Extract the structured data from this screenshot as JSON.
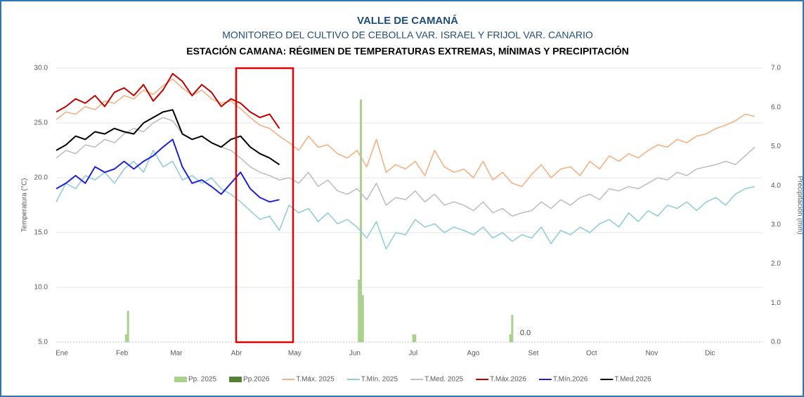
{
  "chart_data": {
    "type": "combo",
    "title": "VALLE DE CAMANÁ",
    "subtitle": "MONITOREO DEL CULTIVO DE CEBOLLA VAR. ISRAEL Y FRIJOL VAR. CANARIO",
    "subtitle2": "ESTACIÓN CAMANA: RÉGIMEN DE TEMPERATURAS EXTREMAS, MÍNIMAS Y PRECIPITACIÓN",
    "y_label": "Temperatura (°C)",
    "y2_label": "Precipitación (mm)",
    "annotation": "0.0",
    "grid": true,
    "legend": "bottom",
    "xlim": [
      1,
      365
    ],
    "xticks": [
      {
        "value": 1,
        "label": "Ene"
      },
      {
        "value": 32,
        "label": "Feb"
      },
      {
        "value": 60,
        "label": "Mar"
      },
      {
        "value": 91,
        "label": "Abr"
      },
      {
        "value": 121,
        "label": "May"
      },
      {
        "value": 152,
        "label": "Jun"
      },
      {
        "value": 182,
        "label": "Jul"
      },
      {
        "value": 213,
        "label": "Ago"
      },
      {
        "value": 244,
        "label": "Set"
      },
      {
        "value": 274,
        "label": "Oct"
      },
      {
        "value": 305,
        "label": "Nov"
      },
      {
        "value": 335,
        "label": "Dic"
      }
    ],
    "ylim": [
      5,
      30
    ],
    "yticks": [
      {
        "value": 5,
        "label": "5.0"
      },
      {
        "value": 10,
        "label": "10.0"
      },
      {
        "value": 15,
        "label": "15.0"
      },
      {
        "value": 20,
        "label": "20.0"
      },
      {
        "value": 25,
        "label": "25.0"
      },
      {
        "value": 30,
        "label": "30.0"
      }
    ],
    "y2lim": [
      0,
      7
    ],
    "y2ticks": [
      {
        "value": 0,
        "label": "0.0"
      },
      {
        "value": 1,
        "label": "1.0"
      },
      {
        "value": 2,
        "label": "2.0"
      },
      {
        "value": 3,
        "label": "3.0"
      },
      {
        "value": 4,
        "label": "4.0"
      },
      {
        "value": 5,
        "label": "5.0"
      },
      {
        "value": 6,
        "label": "6.0"
      },
      {
        "value": 7,
        "label": "7.0"
      }
    ],
    "x": [
      1,
      6,
      11,
      16,
      21,
      26,
      31,
      36,
      41,
      46,
      51,
      56,
      61,
      66,
      71,
      76,
      81,
      86,
      91,
      96,
      101,
      106,
      111,
      116,
      121,
      126,
      131,
      136,
      141,
      146,
      151,
      156,
      161,
      166,
      171,
      176,
      181,
      186,
      191,
      196,
      201,
      206,
      211,
      216,
      221,
      226,
      231,
      236,
      241,
      246,
      251,
      256,
      261,
      266,
      271,
      276,
      281,
      286,
      291,
      296,
      301,
      306,
      311,
      316,
      321,
      326,
      331,
      336,
      341,
      346,
      351,
      356,
      361
    ],
    "series": [
      {
        "name": "Pp. 2025",
        "type": "bar",
        "axis": "y2",
        "color": "#a9d18e",
        "x": [
          37,
          38,
          157,
          158,
          159,
          185,
          186,
          235,
          236
        ],
        "values": [
          0.2,
          0.8,
          1.6,
          6.2,
          1.2,
          0.2,
          0.2,
          0.2,
          0.7
        ]
      },
      {
        "name": "Pp.2026",
        "type": "bar",
        "axis": "y2",
        "color": "#548235",
        "x": [],
        "values": []
      },
      {
        "name": "T.Máx. 2025",
        "type": "line",
        "color": "#f4b183",
        "values": [
          25.3,
          26.0,
          25.8,
          26.5,
          26.2,
          27.0,
          26.8,
          27.5,
          27.2,
          28.0,
          27.6,
          28.4,
          29.0,
          28.2,
          27.5,
          28.0,
          27.2,
          26.8,
          27.0,
          26.3,
          25.5,
          24.8,
          24.5,
          23.8,
          23.2,
          22.5,
          23.8,
          22.8,
          23.0,
          22.2,
          21.8,
          22.5,
          21.0,
          23.5,
          20.5,
          21.2,
          20.8,
          21.5,
          20.2,
          22.5,
          21.0,
          20.5,
          20.8,
          20.0,
          21.5,
          19.8,
          20.5,
          19.5,
          19.2,
          20.3,
          21.2,
          20.0,
          20.8,
          21.0,
          20.2,
          21.5,
          20.8,
          22.0,
          21.5,
          22.2,
          21.8,
          22.5,
          23.0,
          22.8,
          23.5,
          23.2,
          23.8,
          24.0,
          24.5,
          24.8,
          25.2,
          25.8,
          25.6
        ]
      },
      {
        "name": "T.Mín. 2025",
        "type": "line",
        "color": "#92cddc",
        "values": [
          17.8,
          19.5,
          19.0,
          20.2,
          19.8,
          20.5,
          19.5,
          20.8,
          21.5,
          20.5,
          22.5,
          21.0,
          21.5,
          19.8,
          20.2,
          19.5,
          20.0,
          19.0,
          18.5,
          17.8,
          17.0,
          16.2,
          16.5,
          15.2,
          17.5,
          16.8,
          17.2,
          16.0,
          16.8,
          15.8,
          16.2,
          15.5,
          14.5,
          16.0,
          13.5,
          15.0,
          14.8,
          16.2,
          15.5,
          15.8,
          15.0,
          15.5,
          15.2,
          14.8,
          15.5,
          14.5,
          15.0,
          14.2,
          14.8,
          14.5,
          15.5,
          14.0,
          15.2,
          14.8,
          15.5,
          15.0,
          15.8,
          16.2,
          15.5,
          16.8,
          16.0,
          17.0,
          16.5,
          17.5,
          17.2,
          17.8,
          17.0,
          17.8,
          18.2,
          17.5,
          18.5,
          19.0,
          19.2
        ]
      },
      {
        "name": "T.Med. 2025",
        "type": "line",
        "color": "#bfbfbf",
        "values": [
          21.8,
          22.5,
          22.2,
          23.0,
          22.8,
          23.5,
          23.2,
          24.0,
          24.5,
          24.2,
          25.0,
          25.5,
          25.2,
          24.0,
          23.5,
          23.8,
          23.2,
          22.8,
          22.5,
          21.8,
          21.0,
          20.5,
          20.2,
          19.8,
          20.0,
          19.5,
          20.5,
          19.2,
          19.8,
          18.8,
          18.5,
          19.0,
          18.0,
          19.5,
          17.5,
          18.2,
          18.0,
          18.8,
          17.8,
          18.5,
          17.5,
          17.8,
          17.5,
          17.0,
          17.8,
          16.8,
          17.2,
          16.5,
          16.8,
          17.0,
          17.8,
          17.2,
          18.0,
          17.5,
          18.2,
          18.5,
          18.0,
          19.0,
          18.8,
          19.2,
          19.0,
          19.5,
          20.0,
          19.8,
          20.5,
          20.2,
          20.8,
          21.0,
          21.2,
          21.5,
          21.2,
          22.0,
          22.8
        ]
      },
      {
        "name": "T.Máx.2026",
        "type": "line",
        "color": "#c00000",
        "values": [
          26.0,
          26.5,
          27.2,
          26.8,
          27.5,
          26.5,
          27.8,
          28.2,
          27.5,
          28.5,
          27.0,
          28.0,
          29.5,
          28.8,
          27.5,
          28.5,
          27.8,
          26.5,
          27.2,
          26.8,
          26.0,
          25.5,
          25.8,
          24.5,
          null,
          null,
          null,
          null,
          null,
          null,
          null,
          null,
          null,
          null,
          null,
          null,
          null,
          null,
          null,
          null,
          null,
          null,
          null,
          null,
          null,
          null,
          null,
          null,
          null,
          null,
          null,
          null,
          null,
          null,
          null,
          null,
          null,
          null,
          null,
          null,
          null,
          null,
          null,
          null,
          null,
          null,
          null,
          null,
          null,
          null,
          null,
          null,
          null
        ]
      },
      {
        "name": "T.Mín.2026",
        "type": "line",
        "color": "#2020d8",
        "values": [
          19.0,
          19.5,
          20.2,
          19.5,
          21.0,
          20.5,
          20.8,
          21.5,
          20.8,
          21.5,
          22.0,
          22.8,
          23.5,
          21.0,
          19.5,
          19.8,
          19.2,
          18.5,
          19.5,
          20.5,
          19.0,
          18.2,
          17.8,
          18.0,
          null,
          null,
          null,
          null,
          null,
          null,
          null,
          null,
          null,
          null,
          null,
          null,
          null,
          null,
          null,
          null,
          null,
          null,
          null,
          null,
          null,
          null,
          null,
          null,
          null,
          null,
          null,
          null,
          null,
          null,
          null,
          null,
          null,
          null,
          null,
          null,
          null,
          null,
          null,
          null,
          null,
          null,
          null,
          null,
          null,
          null,
          null,
          null,
          null
        ]
      },
      {
        "name": "T.Med.2026",
        "type": "line",
        "color": "#000000",
        "values": [
          22.5,
          23.0,
          23.8,
          23.5,
          24.2,
          24.0,
          24.5,
          24.2,
          24.0,
          25.0,
          25.5,
          26.0,
          26.2,
          24.0,
          23.5,
          23.8,
          23.2,
          22.8,
          23.5,
          23.8,
          22.8,
          22.2,
          21.8,
          21.2,
          null,
          null,
          null,
          null,
          null,
          null,
          null,
          null,
          null,
          null,
          null,
          null,
          null,
          null,
          null,
          null,
          null,
          null,
          null,
          null,
          null,
          null,
          null,
          null,
          null,
          null,
          null,
          null,
          null,
          null,
          null,
          null,
          null,
          null,
          null,
          null,
          null,
          null,
          null,
          null,
          null,
          null,
          null,
          null,
          null,
          null,
          null,
          null,
          null
        ]
      }
    ]
  }
}
